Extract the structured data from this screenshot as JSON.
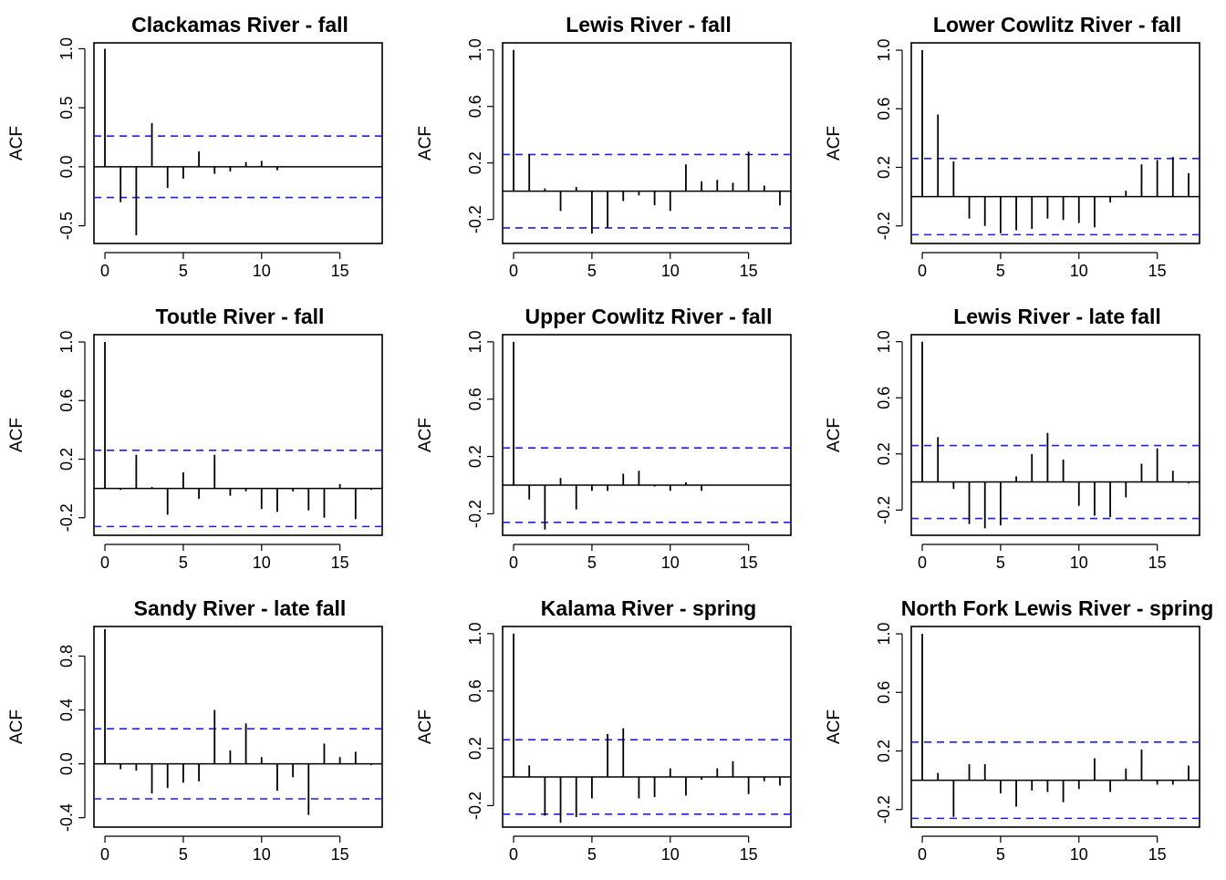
{
  "chart_data": [
    {
      "type": "bar",
      "title": "Clackamas River - fall",
      "ylabel": "ACF",
      "xlabel": "",
      "xlim": [
        -0.7,
        17.7
      ],
      "ylim": [
        -0.65,
        1.05
      ],
      "xticks": [
        0,
        5,
        10,
        15
      ],
      "yticks": [
        -0.5,
        0.0,
        0.5,
        1.0
      ],
      "ytick_labels": [
        "-0.5",
        "0.0",
        "0.5",
        "1.0"
      ],
      "ci": 0.26,
      "lags": [
        0,
        1,
        2,
        3,
        4,
        5,
        6,
        7,
        8,
        9,
        10,
        11
      ],
      "values": [
        1.0,
        -0.3,
        -0.58,
        0.37,
        -0.18,
        -0.1,
        0.13,
        -0.06,
        -0.04,
        0.04,
        0.05,
        -0.03
      ]
    },
    {
      "type": "bar",
      "title": "Lewis River - fall",
      "ylabel": "ACF",
      "xlabel": "",
      "xlim": [
        -0.7,
        17.7
      ],
      "ylim": [
        -0.37,
        1.05
      ],
      "xticks": [
        0,
        5,
        10,
        15
      ],
      "yticks": [
        -0.2,
        0.2,
        0.6,
        1.0
      ],
      "ytick_labels": [
        "-0.2",
        "0.2",
        "0.6",
        "1.0"
      ],
      "ci": 0.26,
      "lags": [
        0,
        1,
        2,
        3,
        4,
        5,
        6,
        7,
        8,
        9,
        10,
        11,
        12,
        13,
        14,
        15,
        16,
        17
      ],
      "values": [
        1.0,
        0.26,
        0.02,
        -0.14,
        0.03,
        -0.3,
        -0.26,
        -0.07,
        -0.03,
        -0.1,
        -0.14,
        0.19,
        0.07,
        0.08,
        0.06,
        0.28,
        0.04,
        -0.1
      ]
    },
    {
      "type": "bar",
      "title": "Lower Cowlitz River - fall",
      "ylabel": "ACF",
      "xlabel": "",
      "xlim": [
        -0.7,
        17.7
      ],
      "ylim": [
        -0.32,
        1.05
      ],
      "xticks": [
        0,
        5,
        10,
        15
      ],
      "yticks": [
        -0.2,
        0.2,
        0.6,
        1.0
      ],
      "ytick_labels": [
        "-0.2",
        "0.2",
        "0.6",
        "1.0"
      ],
      "ci": 0.26,
      "lags": [
        0,
        1,
        2,
        3,
        4,
        5,
        6,
        7,
        8,
        9,
        10,
        11,
        12,
        13,
        14,
        15,
        16,
        17
      ],
      "values": [
        1.0,
        0.56,
        0.24,
        -0.15,
        -0.2,
        -0.25,
        -0.23,
        -0.22,
        -0.15,
        -0.16,
        -0.18,
        -0.21,
        -0.04,
        0.04,
        0.22,
        0.25,
        0.27,
        0.16
      ]
    },
    {
      "type": "bar",
      "title": "Toutle River - fall",
      "ylabel": "ACF",
      "xlabel": "",
      "xlim": [
        -0.7,
        17.7
      ],
      "ylim": [
        -0.32,
        1.05
      ],
      "xticks": [
        0,
        5,
        10,
        15
      ],
      "yticks": [
        -0.2,
        0.2,
        0.6,
        1.0
      ],
      "ytick_labels": [
        "-0.2",
        "0.2",
        "0.6",
        "1.0"
      ],
      "ci": 0.26,
      "lags": [
        0,
        1,
        2,
        3,
        4,
        5,
        6,
        7,
        8,
        9,
        10,
        11,
        12,
        13,
        14,
        15,
        16,
        17
      ],
      "values": [
        1.0,
        -0.01,
        0.23,
        0.01,
        -0.18,
        0.11,
        -0.07,
        0.23,
        -0.05,
        -0.02,
        -0.14,
        -0.16,
        -0.02,
        -0.15,
        -0.2,
        0.03,
        -0.21,
        -0.01
      ]
    },
    {
      "type": "bar",
      "title": "Upper Cowlitz River - fall",
      "ylabel": "ACF",
      "xlabel": "",
      "xlim": [
        -0.7,
        17.7
      ],
      "ylim": [
        -0.35,
        1.05
      ],
      "xticks": [
        0,
        5,
        10,
        15
      ],
      "yticks": [
        -0.2,
        0.2,
        0.6,
        1.0
      ],
      "ytick_labels": [
        "-0.2",
        "0.2",
        "0.6",
        "1.0"
      ],
      "ci": 0.26,
      "lags": [
        0,
        1,
        2,
        3,
        4,
        5,
        6,
        7,
        8,
        9,
        10,
        11,
        12
      ],
      "values": [
        1.0,
        -0.1,
        -0.31,
        0.05,
        -0.17,
        -0.04,
        -0.04,
        0.08,
        0.1,
        -0.01,
        -0.04,
        0.02,
        -0.04
      ]
    },
    {
      "type": "bar",
      "title": "Lewis River - late fall",
      "ylabel": "ACF",
      "xlabel": "",
      "xlim": [
        -0.7,
        17.7
      ],
      "ylim": [
        -0.38,
        1.05
      ],
      "xticks": [
        0,
        5,
        10,
        15
      ],
      "yticks": [
        -0.2,
        0.2,
        0.6,
        1.0
      ],
      "ytick_labels": [
        "-0.2",
        "0.2",
        "0.6",
        "1.0"
      ],
      "ci": 0.26,
      "lags": [
        0,
        1,
        2,
        3,
        4,
        5,
        6,
        7,
        8,
        9,
        10,
        11,
        12,
        13,
        14,
        15,
        16,
        17
      ],
      "values": [
        1.0,
        0.32,
        -0.05,
        -0.3,
        -0.33,
        -0.31,
        0.04,
        0.2,
        0.35,
        0.16,
        -0.17,
        -0.24,
        -0.25,
        -0.11,
        0.13,
        0.24,
        0.08,
        -0.01
      ]
    },
    {
      "type": "bar",
      "title": "Sandy River - late fall",
      "ylabel": "ACF",
      "xlabel": "",
      "xlim": [
        -0.7,
        17.7
      ],
      "ylim": [
        -0.47,
        1.02
      ],
      "xticks": [
        0,
        5,
        10,
        15
      ],
      "yticks": [
        -0.4,
        0.0,
        0.4,
        0.8
      ],
      "ytick_labels": [
        "-0.4",
        "0.0",
        "0.4",
        "0.8"
      ],
      "ci": 0.26,
      "lags": [
        0,
        1,
        2,
        3,
        4,
        5,
        6,
        7,
        8,
        9,
        10,
        11,
        12,
        13,
        14,
        15,
        16,
        17
      ],
      "values": [
        1.0,
        -0.04,
        -0.05,
        -0.22,
        -0.18,
        -0.14,
        -0.13,
        0.4,
        0.1,
        0.3,
        0.05,
        -0.2,
        -0.1,
        -0.38,
        0.15,
        0.05,
        0.09,
        -0.01
      ]
    },
    {
      "type": "bar",
      "title": "Kalama River - spring",
      "ylabel": "ACF",
      "xlabel": "",
      "xlim": [
        -0.7,
        17.7
      ],
      "ylim": [
        -0.35,
        1.05
      ],
      "xticks": [
        0,
        5,
        10,
        15
      ],
      "yticks": [
        -0.2,
        0.2,
        0.6,
        1.0
      ],
      "ytick_labels": [
        "-0.2",
        "0.2",
        "0.6",
        "1.0"
      ],
      "ci": 0.26,
      "lags": [
        0,
        1,
        2,
        3,
        4,
        5,
        6,
        7,
        8,
        9,
        10,
        11,
        12,
        13,
        14,
        15,
        16,
        17
      ],
      "values": [
        1.0,
        0.08,
        -0.27,
        -0.32,
        -0.28,
        -0.15,
        0.3,
        0.34,
        -0.15,
        -0.14,
        0.06,
        -0.13,
        -0.02,
        0.06,
        0.11,
        -0.12,
        -0.03,
        -0.06
      ]
    },
    {
      "type": "bar",
      "title": "North Fork Lewis River - spring",
      "ylabel": "ACF",
      "xlabel": "",
      "xlim": [
        -0.7,
        17.7
      ],
      "ylim": [
        -0.32,
        1.05
      ],
      "xticks": [
        0,
        5,
        10,
        15
      ],
      "yticks": [
        -0.2,
        0.2,
        0.6,
        1.0
      ],
      "ytick_labels": [
        "-0.2",
        "0.2",
        "0.6",
        "1.0"
      ],
      "ci": 0.26,
      "lags": [
        0,
        1,
        2,
        3,
        4,
        5,
        6,
        7,
        8,
        9,
        10,
        11,
        12,
        13,
        14,
        15,
        16,
        17
      ],
      "values": [
        1.0,
        0.05,
        -0.25,
        0.11,
        0.11,
        -0.09,
        -0.18,
        -0.07,
        -0.08,
        -0.15,
        -0.06,
        0.15,
        -0.08,
        0.08,
        0.21,
        -0.03,
        -0.03,
        0.1
      ]
    }
  ]
}
